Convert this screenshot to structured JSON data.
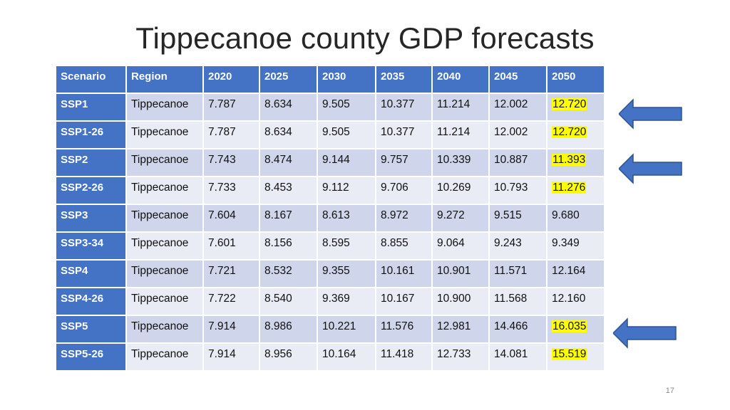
{
  "title": "Tippecanoe county GDP forecasts",
  "page_number": "17",
  "table": {
    "headers": [
      "Scenario",
      "Region",
      "2020",
      "2025",
      "2030",
      "2035",
      "2040",
      "2045",
      "2050"
    ],
    "rows": [
      {
        "scenario": "SSP1",
        "region": "Tippecanoe",
        "values": [
          "7.787",
          "8.634",
          "9.505",
          "10.377",
          "11.214",
          "12.002",
          "12.720"
        ],
        "highlight_2050": true
      },
      {
        "scenario": "SSP1-26",
        "region": "Tippecanoe",
        "values": [
          "7.787",
          "8.634",
          "9.505",
          "10.377",
          "11.214",
          "12.002",
          "12.720"
        ],
        "highlight_2050": true
      },
      {
        "scenario": "SSP2",
        "region": "Tippecanoe",
        "values": [
          "7.743",
          "8.474",
          "9.144",
          "9.757",
          "10.339",
          "10.887",
          "11.393"
        ],
        "highlight_2050": true
      },
      {
        "scenario": "SSP2-26",
        "region": "Tippecanoe",
        "values": [
          "7.733",
          "8.453",
          "9.112",
          "9.706",
          "10.269",
          "10.793",
          "11.276"
        ],
        "highlight_2050": true
      },
      {
        "scenario": "SSP3",
        "region": "Tippecanoe",
        "values": [
          "7.604",
          "8.167",
          "8.613",
          "8.972",
          "9.272",
          "9.515",
          "9.680"
        ],
        "highlight_2050": false
      },
      {
        "scenario": "SSP3-34",
        "region": "Tippecanoe",
        "values": [
          "7.601",
          "8.156",
          "8.595",
          "8.855",
          "9.064",
          "9.243",
          "9.349"
        ],
        "highlight_2050": false
      },
      {
        "scenario": "SSP4",
        "region": "Tippecanoe",
        "values": [
          "7.721",
          "8.532",
          "9.355",
          "10.161",
          "10.901",
          "11.571",
          "12.164"
        ],
        "highlight_2050": false
      },
      {
        "scenario": "SSP4-26",
        "region": "Tippecanoe",
        "values": [
          "7.722",
          "8.540",
          "9.369",
          "10.167",
          "10.900",
          "11.568",
          "12.160"
        ],
        "highlight_2050": false
      },
      {
        "scenario": "SSP5",
        "region": "Tippecanoe",
        "values": [
          "7.914",
          "8.986",
          "10.221",
          "11.576",
          "12.981",
          "14.466",
          "16.035"
        ],
        "highlight_2050": true
      },
      {
        "scenario": "SSP5-26",
        "region": "Tippecanoe",
        "values": [
          "7.914",
          "8.956",
          "10.164",
          "11.418",
          "12.733",
          "14.081",
          "15.519"
        ],
        "highlight_2050": true
      }
    ]
  },
  "arrows": [
    {
      "points_to": "SSP1",
      "direction": "left",
      "color": "#4472c4"
    },
    {
      "points_to": "SSP2",
      "direction": "left",
      "color": "#4472c4"
    },
    {
      "points_to": "SSP5",
      "direction": "left",
      "color": "#4472c4"
    }
  ],
  "colors": {
    "header_bg": "#4472c4",
    "row_odd": "#cfd5ea",
    "row_even": "#e9ebf5",
    "highlight": "#ffff00"
  }
}
